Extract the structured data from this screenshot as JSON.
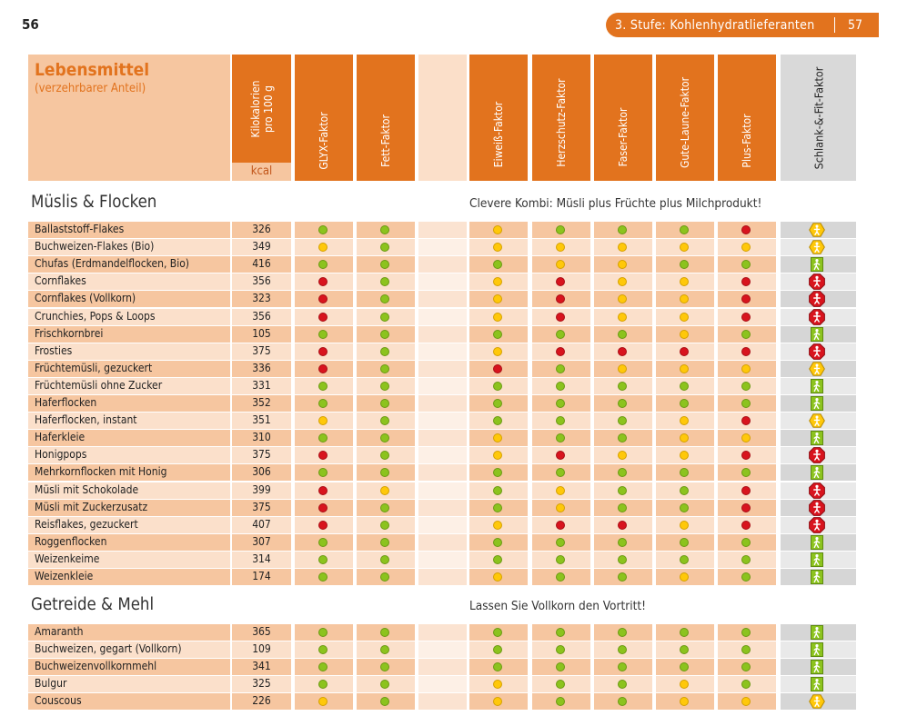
{
  "page_left": "56",
  "chapter": {
    "title": "3. Stufe: Kohlenhydratlieferanten",
    "page": "57"
  },
  "header": {
    "food_title": "Lebensmittel",
    "food_sub": "(verzehrbarer Anteil)",
    "kcal_line1": "Kilokalorien",
    "kcal_line2": "pro 100 g",
    "kcal_unit": "kcal",
    "cols": [
      "GLYX-Faktor",
      "Fett-Faktor",
      "Eiweiß-Faktor",
      "Herzschutz-Faktor",
      "Faser-Faktor",
      "Gute-Laune-Faktor",
      "Plus-Faktor"
    ],
    "last_col": "Schlank-&-Fit-Faktor"
  },
  "colors": {
    "green": "#8cc31e",
    "yellow": "#ffc80a",
    "red": "#d8141e",
    "orange": "#e2731e"
  },
  "sections": [
    {
      "title": "Müslis & Flocken",
      "note": "Clevere Kombi: Müsli plus Früchte plus Milchprodukt!",
      "rows": [
        {
          "name": "Ballaststoff-Flakes",
          "kcal": "326",
          "dots": "ggygggr",
          "icon": "hex"
        },
        {
          "name": "Buchweizen-Flakes (Bio)",
          "kcal": "349",
          "dots": "ygyyyyy",
          "icon": "hex"
        },
        {
          "name": "Chufas (Erdmandelflocken, Bio)",
          "kcal": "416",
          "dots": "gggyygg",
          "icon": "walk"
        },
        {
          "name": "Cornflakes",
          "kcal": "356",
          "dots": "rgyryyr",
          "icon": "stop"
        },
        {
          "name": "Cornflakes (Vollkorn)",
          "kcal": "323",
          "dots": "rgyryyr",
          "icon": "stop"
        },
        {
          "name": "Crunchies, Pops & Loops",
          "kcal": "356",
          "dots": "rgyryyr",
          "icon": "stop"
        },
        {
          "name": "Frischkornbrei",
          "kcal": "105",
          "dots": "gggggyg",
          "icon": "walk"
        },
        {
          "name": "Frosties",
          "kcal": "375",
          "dots": "rgyrrrr",
          "icon": "stop"
        },
        {
          "name": "Früchtemüsli, gezuckert",
          "kcal": "336",
          "dots": "rgrgyyy",
          "icon": "hex"
        },
        {
          "name": "Früchtemüsli ohne Zucker",
          "kcal": "331",
          "dots": "ggggggg",
          "icon": "walk"
        },
        {
          "name": "Haferflocken",
          "kcal": "352",
          "dots": "ggggggg",
          "icon": "walk"
        },
        {
          "name": "Haferflocken, instant",
          "kcal": "351",
          "dots": "yggggyr",
          "icon": "hex"
        },
        {
          "name": "Haferkleie",
          "kcal": "310",
          "dots": "ggyggyy",
          "icon": "walk"
        },
        {
          "name": "Honigpops",
          "kcal": "375",
          "dots": "rgyryyr",
          "icon": "stop"
        },
        {
          "name": "Mehrkornflocken mit Honig",
          "kcal": "306",
          "dots": "ggggggg",
          "icon": "walk"
        },
        {
          "name": "Müsli mit Schokolade",
          "kcal": "399",
          "dots": "rygyggr",
          "icon": "stop"
        },
        {
          "name": "Müsli mit Zuckerzusatz",
          "kcal": "375",
          "dots": "rggyggr",
          "icon": "stop"
        },
        {
          "name": "Reisflakes, gezuckert",
          "kcal": "407",
          "dots": "rgyrryr",
          "icon": "stop"
        },
        {
          "name": "Roggenflocken",
          "kcal": "307",
          "dots": "ggggggg",
          "icon": "walk"
        },
        {
          "name": "Weizenkeime",
          "kcal": "314",
          "dots": "ggggggg",
          "icon": "walk"
        },
        {
          "name": "Weizenkleie",
          "kcal": "174",
          "dots": "ggyggyg",
          "icon": "walk"
        }
      ]
    },
    {
      "title": "Getreide & Mehl",
      "note": "Lassen Sie Vollkorn den Vortritt!",
      "rows": [
        {
          "name": "Amaranth",
          "kcal": "365",
          "dots": "ggggggg",
          "icon": "walk"
        },
        {
          "name": "Buchweizen, gegart (Vollkorn)",
          "kcal": "109",
          "dots": "ggggggg",
          "icon": "walk"
        },
        {
          "name": "Buchweizenvollkornmehl",
          "kcal": "341",
          "dots": "ggggggg",
          "icon": "walk"
        },
        {
          "name": "Bulgur",
          "kcal": "325",
          "dots": "ggyggyg",
          "icon": "walk"
        },
        {
          "name": "Couscous",
          "kcal": "226",
          "dots": "ygyggyy",
          "icon": "hex"
        }
      ]
    }
  ]
}
